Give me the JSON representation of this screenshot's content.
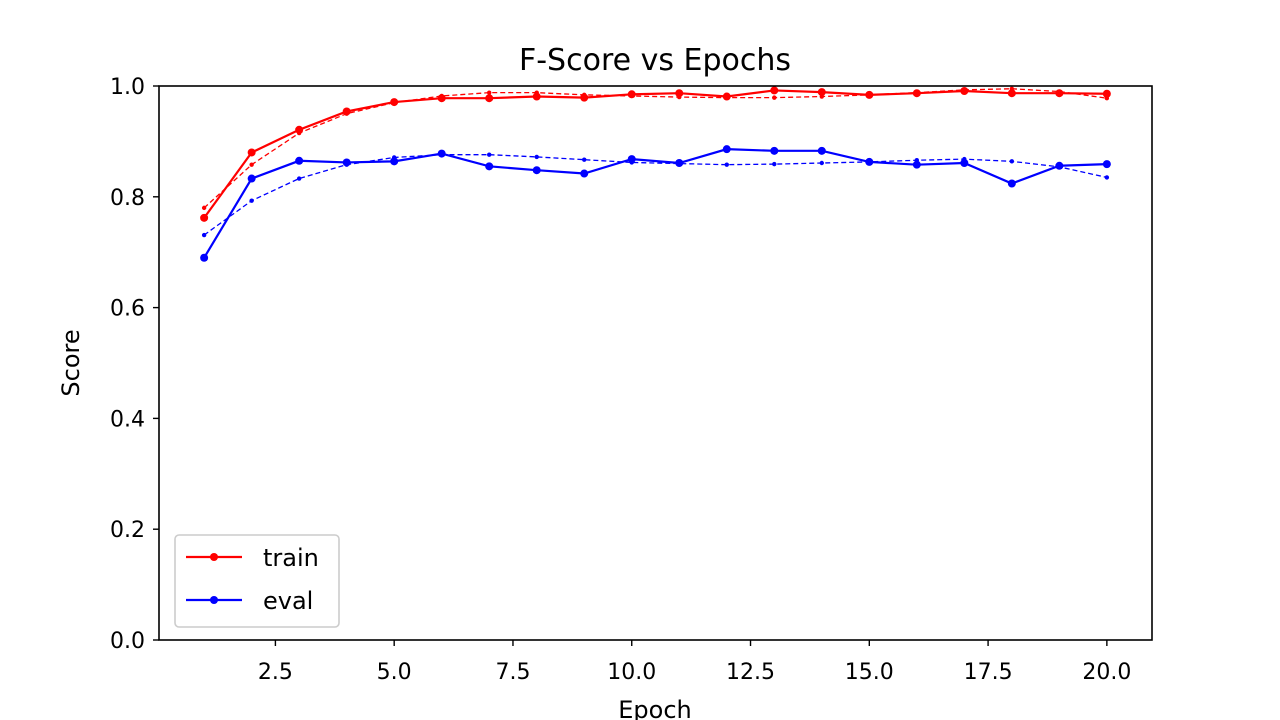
{
  "chart_data": {
    "type": "line",
    "title": "F-Score vs Epochs",
    "xlabel": "Epoch",
    "ylabel": "Score",
    "xlim": [
      0.05,
      20.95
    ],
    "ylim": [
      0.0,
      1.0
    ],
    "xticks": [
      "2.5",
      "5.0",
      "7.5",
      "10.0",
      "12.5",
      "15.0",
      "17.5",
      "20.0"
    ],
    "yticks": [
      "0.0",
      "0.2",
      "0.4",
      "0.6",
      "0.8",
      "1.0"
    ],
    "grid": false,
    "legend_position": "lower-left",
    "x": [
      1,
      2,
      3,
      4,
      5,
      6,
      7,
      8,
      9,
      10,
      11,
      12,
      13,
      14,
      15,
      16,
      17,
      18,
      19,
      20
    ],
    "series": [
      {
        "name": "train",
        "color": "#ff0000",
        "values": [
          0.762,
          0.88,
          0.921,
          0.954,
          0.971,
          0.978,
          0.978,
          0.981,
          0.979,
          0.985,
          0.987,
          0.981,
          0.992,
          0.989,
          0.984,
          0.987,
          0.991,
          0.987,
          0.987,
          0.986
        ],
        "trend": [
          0.78,
          0.858,
          0.915,
          0.95,
          0.97,
          0.982,
          0.988,
          0.988,
          0.984,
          0.982,
          0.98,
          0.979,
          0.979,
          0.981,
          0.984,
          0.988,
          0.993,
          0.995,
          0.99,
          0.978
        ]
      },
      {
        "name": "eval",
        "color": "#0000ff",
        "values": [
          0.69,
          0.833,
          0.865,
          0.862,
          0.864,
          0.878,
          0.855,
          0.848,
          0.842,
          0.868,
          0.861,
          0.886,
          0.883,
          0.883,
          0.863,
          0.858,
          0.861,
          0.824,
          0.856,
          0.859
        ],
        "trend": [
          0.731,
          0.793,
          0.833,
          0.858,
          0.871,
          0.876,
          0.876,
          0.872,
          0.867,
          0.862,
          0.86,
          0.858,
          0.859,
          0.861,
          0.863,
          0.866,
          0.868,
          0.864,
          0.854,
          0.835
        ]
      }
    ]
  }
}
